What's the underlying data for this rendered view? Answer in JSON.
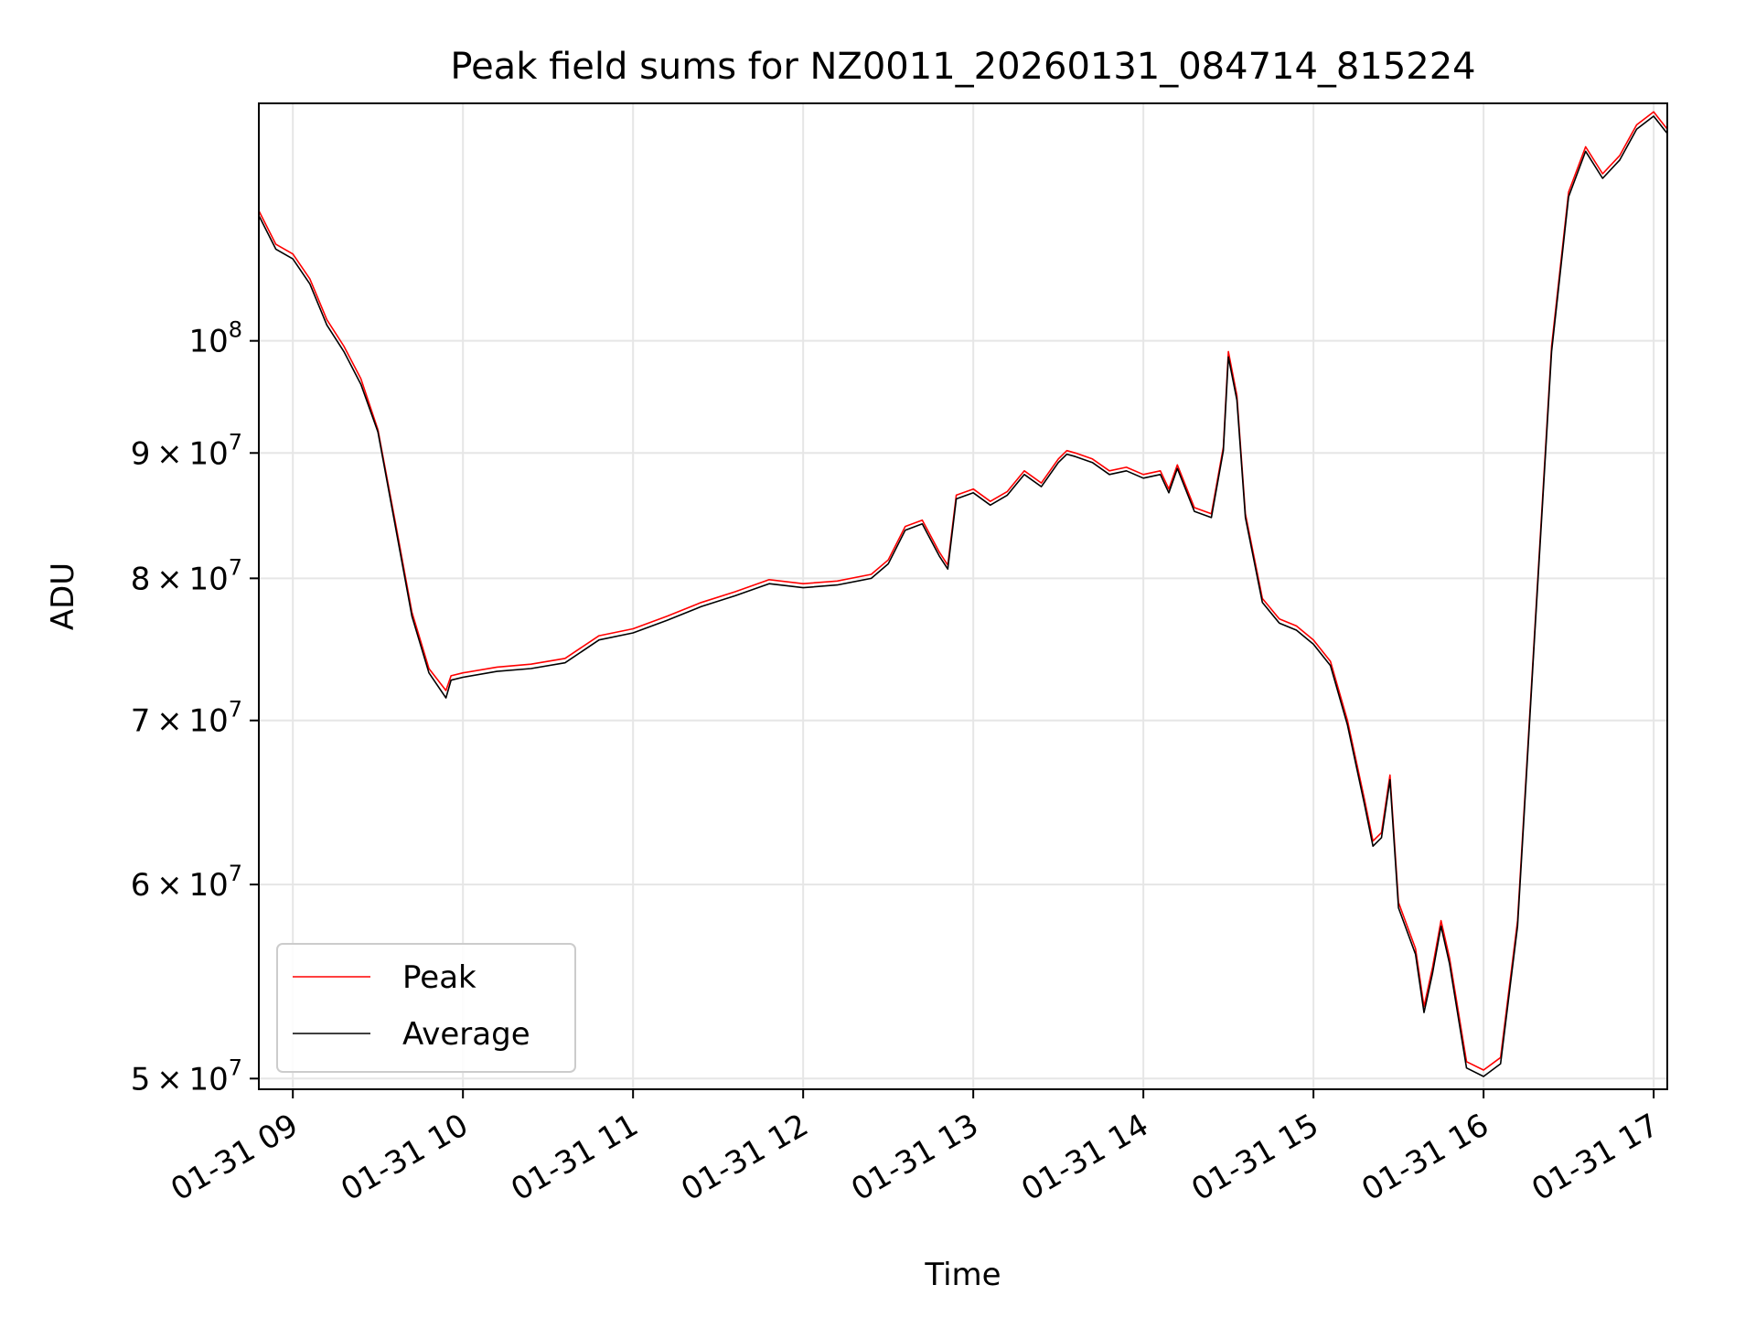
{
  "chart_data": {
    "type": "line",
    "title": "Peak field sums for NZ0011_20260131_084714_815224",
    "xlabel": "Time",
    "ylabel": "ADU",
    "yscale": "log",
    "ylim": [
      49500000,
      125000000
    ],
    "xlim": [
      8.8,
      17.08
    ],
    "grid": true,
    "legend_position": "lower-left",
    "x_unit": "hours on 01-31",
    "x_ticks": [
      {
        "value": 9,
        "label": "01-31 09"
      },
      {
        "value": 10,
        "label": "01-31 10"
      },
      {
        "value": 11,
        "label": "01-31 11"
      },
      {
        "value": 12,
        "label": "01-31 12"
      },
      {
        "value": 13,
        "label": "01-31 13"
      },
      {
        "value": 14,
        "label": "01-31 14"
      },
      {
        "value": 15,
        "label": "01-31 15"
      },
      {
        "value": 16,
        "label": "01-31 16"
      },
      {
        "value": 17,
        "label": "01-31 17"
      }
    ],
    "y_ticks": [
      {
        "value": 50000000,
        "mantissa": "5",
        "base": "10",
        "exp": "7"
      },
      {
        "value": 60000000,
        "mantissa": "6",
        "base": "10",
        "exp": "7"
      },
      {
        "value": 70000000,
        "mantissa": "7",
        "base": "10",
        "exp": "7"
      },
      {
        "value": 80000000,
        "mantissa": "8",
        "base": "10",
        "exp": "7"
      },
      {
        "value": 90000000,
        "mantissa": "9",
        "base": "10",
        "exp": "7"
      },
      {
        "value": 100000000,
        "mantissa": "",
        "base": "10",
        "exp": "8"
      }
    ],
    "x": [
      8.8,
      8.9,
      9.0,
      9.1,
      9.2,
      9.3,
      9.4,
      9.5,
      9.6,
      9.7,
      9.8,
      9.9,
      9.93,
      10.0,
      10.2,
      10.4,
      10.6,
      10.8,
      11.0,
      11.2,
      11.4,
      11.6,
      11.8,
      12.0,
      12.2,
      12.4,
      12.5,
      12.6,
      12.7,
      12.8,
      12.85,
      12.9,
      13.0,
      13.1,
      13.2,
      13.3,
      13.4,
      13.5,
      13.55,
      13.6,
      13.7,
      13.8,
      13.9,
      14.0,
      14.1,
      14.15,
      14.2,
      14.3,
      14.4,
      14.47,
      14.5,
      14.55,
      14.6,
      14.7,
      14.8,
      14.9,
      15.0,
      15.1,
      15.2,
      15.3,
      15.35,
      15.4,
      15.45,
      15.5,
      15.6,
      15.65,
      15.7,
      15.75,
      15.8,
      15.9,
      16.0,
      16.1,
      16.2,
      16.3,
      16.4,
      16.5,
      16.6,
      16.7,
      16.8,
      16.9,
      17.0,
      17.08
    ],
    "series": [
      {
        "name": "Peak",
        "color": "#ff0000",
        "values": [
          113000000,
          109500000,
          108500000,
          106000000,
          102000000,
          99500000,
          96500000,
          92000000,
          84500000,
          77500000,
          73500000,
          72000000,
          73000000,
          73200000,
          73600000,
          73800000,
          74200000,
          75800000,
          76300000,
          77200000,
          78200000,
          79000000,
          79900000,
          79600000,
          79800000,
          80300000,
          81400000,
          84000000,
          84500000,
          82000000,
          81000000,
          86500000,
          87000000,
          86000000,
          86800000,
          88500000,
          87500000,
          89500000,
          90200000,
          90000000,
          89500000,
          88500000,
          88800000,
          88200000,
          88500000,
          87000000,
          89000000,
          85500000,
          85000000,
          90500000,
          99000000,
          95000000,
          85000000,
          78500000,
          77000000,
          76500000,
          75500000,
          74000000,
          70000000,
          65000000,
          62500000,
          63000000,
          66500000,
          59000000,
          56500000,
          53500000,
          55500000,
          58000000,
          56000000,
          50800000,
          50400000,
          51000000,
          58000000,
          76000000,
          99500000,
          115000000,
          120000000,
          117000000,
          119000000,
          122500000,
          124000000,
          122000000
        ]
      },
      {
        "name": "Average",
        "color": "#000000",
        "values": [
          112500000,
          109000000,
          108000000,
          105500000,
          101500000,
          99000000,
          96000000,
          91800000,
          84200000,
          77200000,
          73200000,
          71500000,
          72700000,
          72900000,
          73300000,
          73500000,
          73900000,
          75500000,
          76000000,
          76900000,
          77900000,
          78700000,
          79600000,
          79300000,
          79500000,
          80000000,
          81100000,
          83700000,
          84200000,
          81700000,
          80700000,
          86200000,
          86700000,
          85700000,
          86500000,
          88200000,
          87200000,
          89200000,
          89900000,
          89700000,
          89200000,
          88200000,
          88500000,
          87900000,
          88200000,
          86700000,
          88700000,
          85200000,
          84700000,
          90200000,
          98500000,
          94600000,
          84700000,
          78200000,
          76700000,
          76200000,
          75200000,
          73700000,
          69700000,
          64700000,
          62200000,
          62700000,
          66200000,
          58700000,
          56200000,
          53200000,
          55200000,
          57700000,
          55700000,
          50500000,
          50100000,
          50700000,
          57700000,
          75700000,
          99000000,
          114500000,
          119500000,
          116500000,
          118500000,
          122000000,
          123500000,
          121500000
        ]
      }
    ]
  }
}
